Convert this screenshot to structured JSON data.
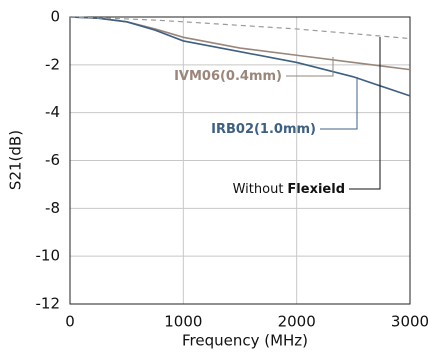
{
  "chart_data": {
    "type": "line",
    "x": [
      0,
      250,
      500,
      750,
      1000,
      1500,
      2000,
      2500,
      3000
    ],
    "series": [
      {
        "color": "#9a867b",
        "dash": false,
        "values": [
          0,
          -0.05,
          -0.2,
          -0.5,
          -0.85,
          -1.3,
          -1.6,
          -1.9,
          -2.2
        ]
      },
      {
        "color": "#3d6083",
        "dash": false,
        "values": [
          0,
          -0.05,
          -0.2,
          -0.55,
          -1.0,
          -1.45,
          -1.9,
          -2.5,
          -3.3
        ]
      },
      {
        "color": "#9a9a9a",
        "dash": true,
        "values": [
          0,
          -0.04,
          -0.08,
          -0.13,
          -0.2,
          -0.35,
          -0.5,
          -0.7,
          -0.9
        ]
      }
    ],
    "annotations": [
      {
        "text": "IVM06(0.4mm)"
      },
      {
        "text": "IRB02(1.0mm)"
      },
      {
        "text": "Without",
        "bold": "Flexield"
      }
    ],
    "xlabel": "Frequency (MHz)",
    "ylabel": "S21(dB)",
    "xlim": [
      0,
      3000
    ],
    "xticks": [
      0,
      1000,
      2000,
      3000
    ],
    "ylim": [
      -12,
      0
    ],
    "yticks": [
      0,
      -2,
      -4,
      -6,
      -8,
      -10,
      -12
    ],
    "grid": true
  }
}
